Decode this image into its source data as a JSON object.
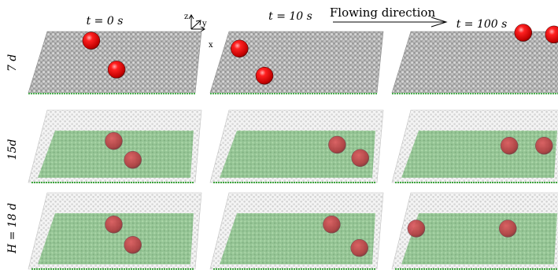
{
  "columns": [
    {
      "label": "t = 0 s"
    },
    {
      "label": "t = 10 s"
    },
    {
      "label": "t = 100 s"
    }
  ],
  "rows": [
    {
      "label": "7 d",
      "style": "opaque"
    },
    {
      "label": "15d",
      "style": "transparent"
    },
    {
      "label": "H = 18 d",
      "style": "transparent"
    }
  ],
  "axes": {
    "z": "z",
    "y": "y",
    "x": "x"
  },
  "flow_label": "Flowing direction",
  "colors": {
    "particles_opaque": "#b9b9b9",
    "particles_transparent": "#d9d9d9",
    "bed_green": "#5aa65a",
    "ball_red": "#ee1111"
  },
  "balls": [
    [
      {
        "u": 0.3,
        "v": 0.15
      },
      {
        "u": 0.5,
        "v": 0.62
      }
    ],
    [
      {
        "u": 0.1,
        "v": 0.28
      },
      {
        "u": 0.3,
        "v": 0.72
      }
    ],
    [
      {
        "u": 0.73,
        "v": 0.02
      },
      {
        "u": 0.93,
        "v": 0.05
      }
    ],
    [
      {
        "u": 0.45,
        "v": 0.22
      },
      {
        "u": 0.6,
        "v": 0.62
      }
    ],
    [
      {
        "u": 0.72,
        "v": 0.3
      },
      {
        "u": 0.88,
        "v": 0.58
      }
    ],
    [
      {
        "u": 0.66,
        "v": 0.32
      },
      {
        "u": 0.88,
        "v": 0.32
      }
    ],
    [
      {
        "u": 0.45,
        "v": 0.22
      },
      {
        "u": 0.6,
        "v": 0.62
      }
    ],
    [
      {
        "u": 0.68,
        "v": 0.22
      },
      {
        "u": 0.88,
        "v": 0.68
      }
    ],
    [
      {
        "u": 0.07,
        "v": 0.3
      },
      {
        "u": 0.65,
        "v": 0.3
      }
    ]
  ]
}
